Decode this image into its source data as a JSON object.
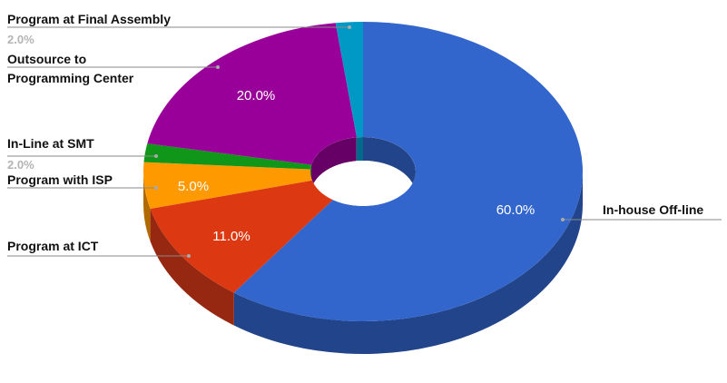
{
  "chart_data": {
    "type": "pie",
    "variant": "3d-donut",
    "title": "",
    "start_at": "top",
    "direction": "clockwise",
    "slices": [
      {
        "name": "In-house Off-line",
        "value": 60.0,
        "pct_label": "60.0%",
        "color": "#3366cc",
        "side_color": "#22448a",
        "label_side": "right",
        "pct_position": "inside"
      },
      {
        "name": "Program at ICT",
        "value": 11.0,
        "pct_label": "11.0%",
        "color": "#dc3912",
        "side_color": "#962710",
        "label_side": "left",
        "pct_position": "inside"
      },
      {
        "name": "Program with ISP",
        "value": 5.0,
        "pct_label": "5.0%",
        "color": "#ff9900",
        "side_color": "#b06a00",
        "label_side": "left",
        "pct_position": "inside"
      },
      {
        "name": "In-Line at SMT",
        "value": 2.0,
        "pct_label": "2.0%",
        "color": "#109618",
        "side_color": "#0a6410",
        "label_side": "left",
        "pct_position": "outside"
      },
      {
        "name": "Outsource to Programming Center",
        "name_lines": [
          "Outsource to",
          "Programming Center"
        ],
        "value": 20.0,
        "pct_label": "20.0%",
        "color": "#990099",
        "side_color": "#660066",
        "label_side": "left",
        "pct_position": "inside"
      },
      {
        "name": "Program at Final Assembly",
        "value": 2.0,
        "pct_label": "2.0%",
        "color": "#0099c6",
        "side_color": "#006a8a",
        "label_side": "left",
        "pct_position": "outside"
      }
    ],
    "legend": "none"
  }
}
